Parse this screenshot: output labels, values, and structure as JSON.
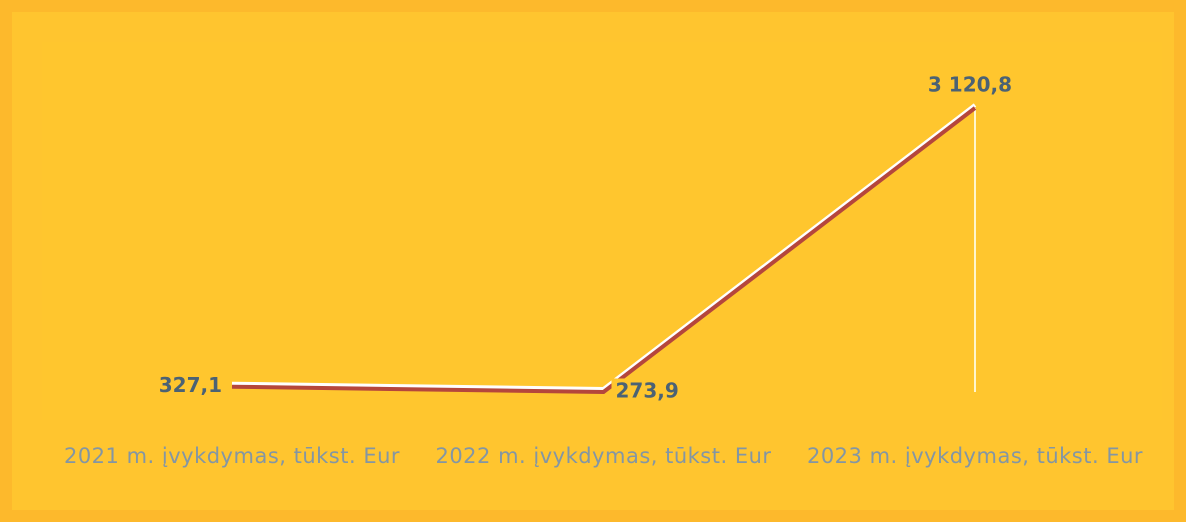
{
  "chart_data": {
    "type": "line",
    "categories": [
      "2021 m. įvykdymas, tūkst. Eur",
      "2022 m. įvykdymas, tūkst. Eur",
      "2023 m. įvykdymas, tūkst. Eur"
    ],
    "series": [
      {
        "color": "#b5463c",
        "values": [
          327.1,
          273.9,
          3120.8
        ],
        "value_labels": [
          "327,1",
          "273,9",
          "3 120,8"
        ]
      }
    ]
  }
}
